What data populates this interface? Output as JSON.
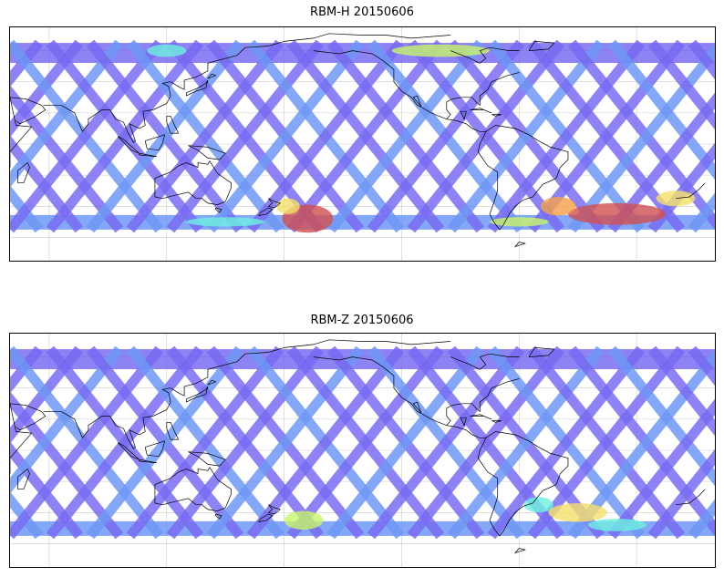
{
  "maps": [
    {
      "title": "RBM-H 20150606",
      "colormap": [
        "#6a5cf0",
        "#5f8cf4",
        "#5fc8f5",
        "#6ef0e0",
        "#c8f56a",
        "#f5e06a",
        "#f5a04a",
        "#e86050",
        "#d05050"
      ],
      "hot_regions": [
        {
          "lon": -168,
          "lat": -48,
          "w": 26,
          "h": 18,
          "level": 8
        },
        {
          "lon": -178,
          "lat": -40,
          "w": 12,
          "h": 10,
          "level": 5
        },
        {
          "lon": -10,
          "lat": -45,
          "w": 50,
          "h": 14,
          "level": 8
        },
        {
          "lon": -40,
          "lat": -40,
          "w": 18,
          "h": 12,
          "level": 6
        },
        {
          "lon": 20,
          "lat": -35,
          "w": 20,
          "h": 10,
          "level": 5
        },
        {
          "lon": -100,
          "lat": 60,
          "w": 50,
          "h": 8,
          "level": 4
        },
        {
          "lon": 120,
          "lat": 60,
          "w": 20,
          "h": 8,
          "level": 3
        },
        {
          "lon": 150,
          "lat": -50,
          "w": 40,
          "h": 6,
          "level": 3
        },
        {
          "lon": -60,
          "lat": -50,
          "w": 30,
          "h": 6,
          "level": 4
        }
      ]
    },
    {
      "title": "RBM-Z 20150606",
      "colormap": [
        "#6a5cf0",
        "#5f8cf4",
        "#5fc8f5",
        "#6ef0e0",
        "#c8f56a",
        "#f5e06a",
        "#f5a04a",
        "#e86050",
        "#d05050"
      ],
      "hot_regions": [
        {
          "lon": -170,
          "lat": -45,
          "w": 20,
          "h": 12,
          "level": 4
        },
        {
          "lon": -30,
          "lat": -40,
          "w": 30,
          "h": 12,
          "level": 5
        },
        {
          "lon": -10,
          "lat": -48,
          "w": 30,
          "h": 8,
          "level": 3
        },
        {
          "lon": -50,
          "lat": -35,
          "w": 15,
          "h": 10,
          "level": 3
        }
      ]
    }
  ]
}
